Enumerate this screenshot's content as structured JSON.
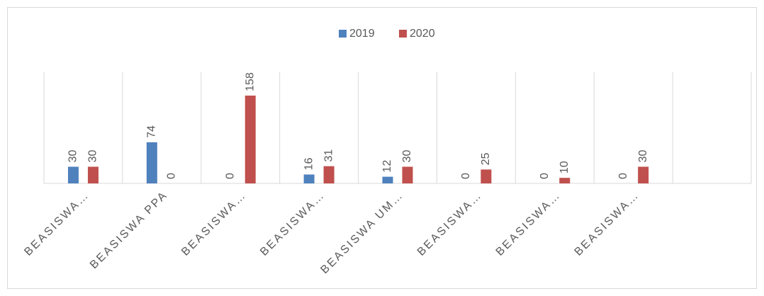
{
  "chart_data": {
    "type": "bar",
    "categories": [
      "BEASISWA…",
      "BEASISWA PPA",
      "BEASISWA…",
      "BEASISWA…",
      "BEASISWA UM…",
      "BEASISWA…",
      "BEASISWA…",
      "BEASISWA…",
      null
    ],
    "series": [
      {
        "name": "2019",
        "color": "#4f81bd",
        "values": [
          30,
          74,
          0,
          16,
          12,
          0,
          0,
          0,
          null
        ]
      },
      {
        "name": "2020",
        "color": "#c0504d",
        "values": [
          30,
          0,
          158,
          31,
          30,
          25,
          10,
          30,
          null
        ]
      }
    ],
    "ylim": [
      0,
      200
    ],
    "legend": "top"
  }
}
